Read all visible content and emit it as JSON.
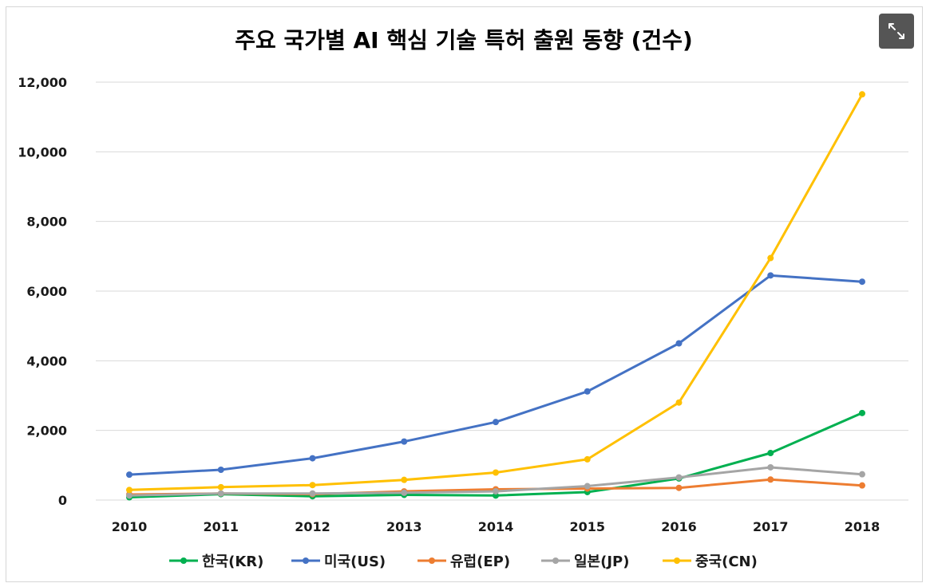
{
  "chart_data": {
    "type": "line",
    "title": "주요 국가별 AI 핵심 기술 특허 출원 동향 (건수)",
    "xlabel": "",
    "ylabel": "",
    "categories": [
      "2010",
      "2011",
      "2012",
      "2013",
      "2014",
      "2015",
      "2016",
      "2017",
      "2018"
    ],
    "ylim": [
      0,
      12000
    ],
    "yticks": [
      0,
      2000,
      4000,
      6000,
      8000,
      10000,
      12000
    ],
    "ytick_labels": [
      "0",
      "2,000",
      "4,000",
      "6,000",
      "8,000",
      "10,000",
      "12,000"
    ],
    "grid": true,
    "legend_position": "bottom",
    "series": [
      {
        "name": "한국(KR)",
        "color": "#00b050",
        "values": [
          80,
          170,
          110,
          150,
          130,
          230,
          620,
          1350,
          2500
        ]
      },
      {
        "name": "미국(US)",
        "color": "#4472c4",
        "values": [
          730,
          870,
          1200,
          1680,
          2240,
          3120,
          4500,
          6450,
          6270
        ]
      },
      {
        "name": "유럽(EP)",
        "color": "#ed7d31",
        "values": [
          160,
          190,
          170,
          250,
          310,
          330,
          350,
          590,
          420
        ]
      },
      {
        "name": "일본(JP)",
        "color": "#a5a5a5",
        "values": [
          130,
          190,
          190,
          210,
          250,
          400,
          650,
          940,
          740
        ]
      },
      {
        "name": "중국(CN)",
        "color": "#ffc000",
        "values": [
          290,
          370,
          430,
          580,
          790,
          1170,
          2800,
          6950,
          11650
        ]
      }
    ]
  },
  "ui": {
    "expand_icon": "expand-arrows-icon"
  }
}
